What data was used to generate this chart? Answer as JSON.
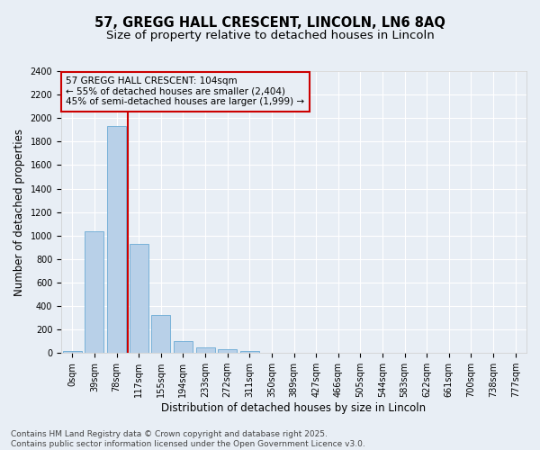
{
  "title_line1": "57, GREGG HALL CRESCENT, LINCOLN, LN6 8AQ",
  "title_line2": "Size of property relative to detached houses in Lincoln",
  "xlabel": "Distribution of detached houses by size in Lincoln",
  "ylabel": "Number of detached properties",
  "bar_color": "#b8d0e8",
  "bar_edgecolor": "#6aaad4",
  "background_color": "#e8eef5",
  "grid_color": "#ffffff",
  "vline_x": 2.5,
  "vline_color": "#cc0000",
  "annotation_text": "57 GREGG HALL CRESCENT: 104sqm\n← 55% of detached houses are smaller (2,404)\n45% of semi-detached houses are larger (1,999) →",
  "annotation_box_color": "#cc0000",
  "categories": [
    "0sqm",
    "39sqm",
    "78sqm",
    "117sqm",
    "155sqm",
    "194sqm",
    "233sqm",
    "272sqm",
    "311sqm",
    "350sqm",
    "389sqm",
    "427sqm",
    "466sqm",
    "505sqm",
    "544sqm",
    "583sqm",
    "622sqm",
    "661sqm",
    "700sqm",
    "738sqm",
    "777sqm"
  ],
  "values": [
    20,
    1035,
    1930,
    930,
    320,
    105,
    50,
    30,
    20,
    0,
    0,
    0,
    0,
    0,
    0,
    0,
    0,
    0,
    0,
    0,
    0
  ],
  "ylim": [
    0,
    2400
  ],
  "yticks": [
    0,
    200,
    400,
    600,
    800,
    1000,
    1200,
    1400,
    1600,
    1800,
    2000,
    2200,
    2400
  ],
  "footer_line1": "Contains HM Land Registry data © Crown copyright and database right 2025.",
  "footer_line2": "Contains public sector information licensed under the Open Government Licence v3.0.",
  "title_fontsize": 10.5,
  "subtitle_fontsize": 9.5,
  "axis_label_fontsize": 8.5,
  "tick_fontsize": 7,
  "annotation_fontsize": 7.5,
  "footer_fontsize": 6.5
}
